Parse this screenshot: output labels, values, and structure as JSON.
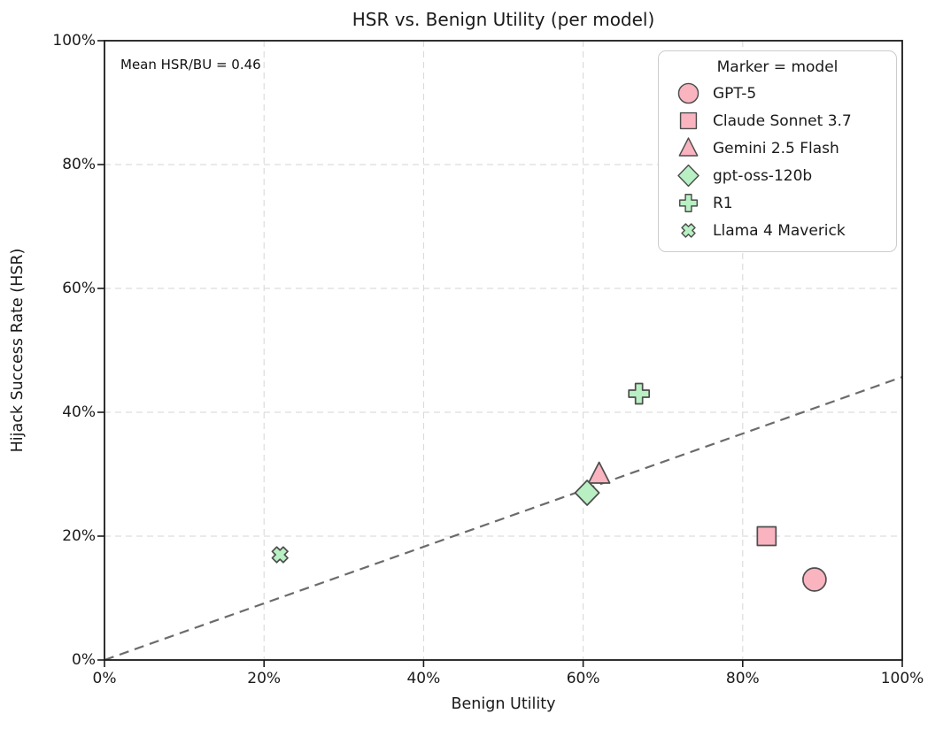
{
  "chart_data": {
    "type": "scatter",
    "title": "HSR vs. Benign Utility (per model)",
    "xlabel": "Benign Utility",
    "ylabel": "Hijack Success Rate (HSR)",
    "xlim": [
      0,
      100
    ],
    "ylim": [
      0,
      100
    ],
    "xticks": [
      0,
      20,
      40,
      60,
      80,
      100
    ],
    "yticks": [
      0,
      20,
      40,
      60,
      80,
      100
    ],
    "tick_suffix": "%",
    "grid": true,
    "annotation": "Mean HSR/BU = 0.46",
    "legend": {
      "title": "Marker = model",
      "position": "upper right"
    },
    "reference_line": {
      "style": "dashed",
      "x": [
        0,
        100
      ],
      "y": [
        0,
        45.7
      ],
      "slope": 0.46
    },
    "series": [
      {
        "name": "GPT-5",
        "marker": "circle",
        "color_group": "pink",
        "x": 89,
        "y": 13
      },
      {
        "name": "Claude Sonnet 3.7",
        "marker": "square",
        "color_group": "pink",
        "x": 83,
        "y": 20
      },
      {
        "name": "Gemini 2.5 Flash",
        "marker": "triangle",
        "color_group": "pink",
        "x": 62,
        "y": 30
      },
      {
        "name": "gpt-oss-120b",
        "marker": "diamond",
        "color_group": "green",
        "x": 60.5,
        "y": 27
      },
      {
        "name": "R1",
        "marker": "plus",
        "color_group": "green",
        "x": 67,
        "y": 43
      },
      {
        "name": "Llama 4 Maverick",
        "marker": "x",
        "color_group": "green",
        "x": 22,
        "y": 17
      }
    ],
    "colors": {
      "pink": "#f9b4c0",
      "green": "#b8f0c3",
      "marker_edge": "#4d4d4d",
      "reference_line": "#6b6b6b",
      "grid": "#d6d6d6",
      "axis": "#1a1a1a",
      "background": "#ffffff"
    }
  }
}
